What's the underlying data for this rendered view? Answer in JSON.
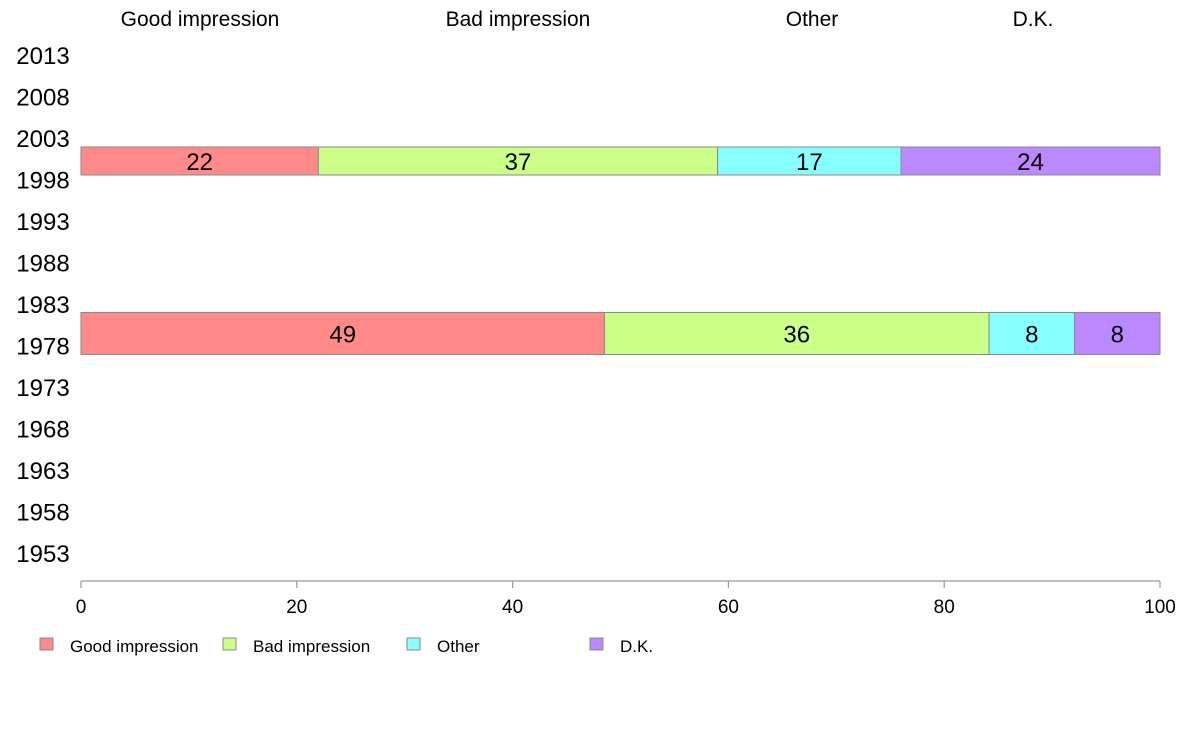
{
  "chart_data": {
    "type": "bar",
    "orientation": "horizontal",
    "stacked": true,
    "categories": [
      "2013",
      "2008",
      "2003",
      "1998",
      "1993",
      "1988",
      "1983",
      "1978",
      "1973",
      "1968",
      "1963",
      "1958",
      "1953"
    ],
    "series": [
      {
        "name": "Good impression",
        "color": "#ff8a8a",
        "values": [
          null,
          null,
          22,
          null,
          null,
          null,
          null,
          49,
          null,
          null,
          null,
          null,
          null
        ]
      },
      {
        "name": "Bad impression",
        "color": "#ccff88",
        "values": [
          null,
          null,
          37,
          null,
          null,
          null,
          null,
          36,
          null,
          null,
          null,
          null,
          null
        ]
      },
      {
        "name": "Other",
        "color": "#88ffff",
        "values": [
          null,
          null,
          17,
          null,
          null,
          null,
          null,
          8,
          null,
          null,
          null,
          null,
          null
        ]
      },
      {
        "name": "D.K.",
        "color": "#bb88ff",
        "values": [
          null,
          null,
          24,
          null,
          null,
          null,
          null,
          8,
          null,
          null,
          null,
          null,
          null
        ]
      }
    ],
    "column_headers": [
      "Good impression",
      "Bad impression",
      "Other",
      "D.K."
    ],
    "xlim": [
      0,
      100
    ],
    "xticks": [
      "0",
      "20",
      "40",
      "60",
      "80",
      "100"
    ],
    "grid": false,
    "legend_position": "bottom-left"
  }
}
